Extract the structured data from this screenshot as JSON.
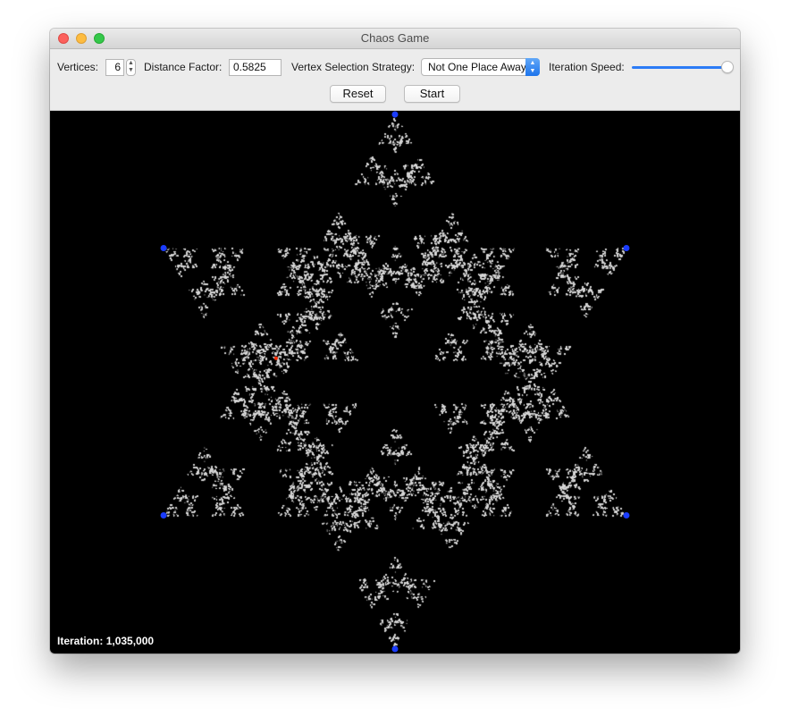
{
  "window": {
    "title": "Chaos Game"
  },
  "controls": {
    "vertices_label": "Vertices:",
    "vertices_value": "6",
    "distance_label": "Distance Factor:",
    "distance_value": "0.5825",
    "strategy_label": "Vertex Selection Strategy:",
    "strategy_value": "Not One Place Away",
    "speed_label": "Iteration Speed:",
    "speed_level": 1.0,
    "reset_label": "Reset",
    "start_label": "Start"
  },
  "canvas": {
    "iteration_label": "Iteration:",
    "iteration_value": "1,035,000",
    "background_color": "#000000",
    "point_color": "#d8d8d8",
    "vertex_color": "#1a3cff",
    "current_point_color": "#ff2a00"
  },
  "icons": {
    "stepper": "stepper-arrows-icon",
    "select_arrow": "popup-chevron-icon",
    "close": "close-icon",
    "minimize": "minimize-icon",
    "maximize": "maximize-icon"
  }
}
